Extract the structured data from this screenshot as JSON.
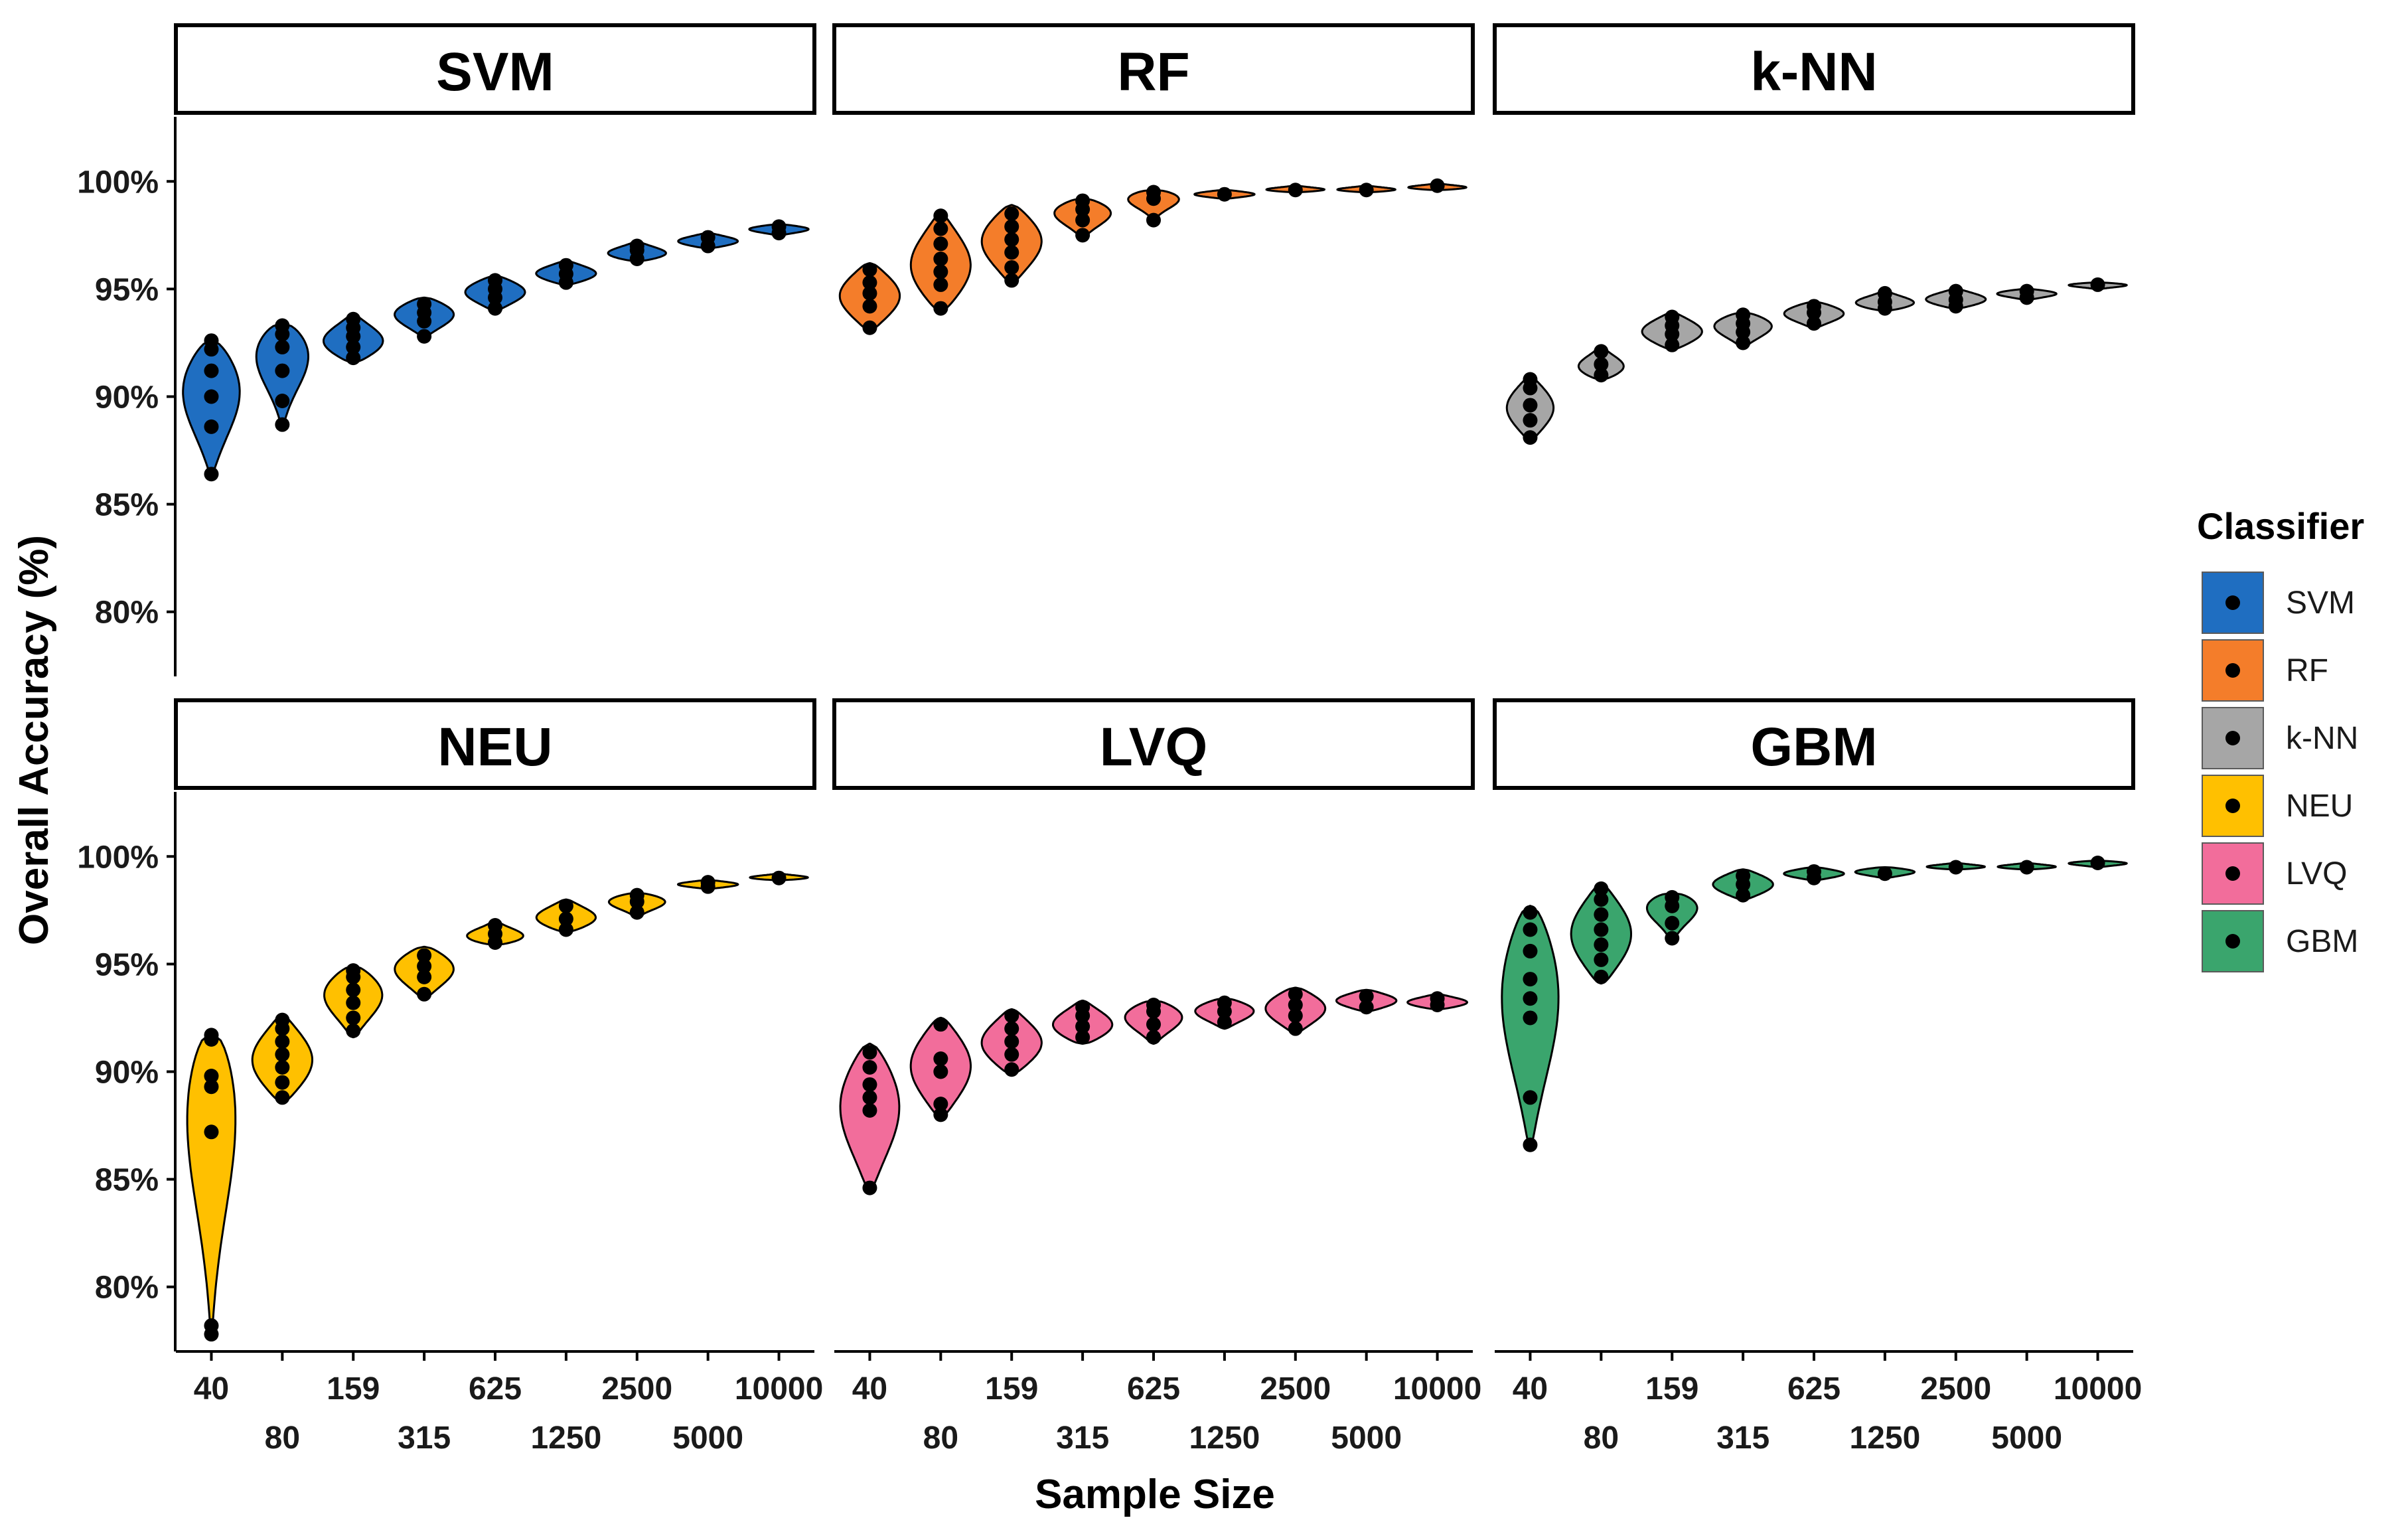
{
  "chart_data": {
    "type": "violin",
    "xlabel": "Sample Size",
    "ylabel": "Overall Accuracy (%)",
    "categories": [
      "40",
      "80",
      "159",
      "315",
      "625",
      "1250",
      "2500",
      "5000",
      "10000"
    ],
    "y_ticks": [
      "80%",
      "85%",
      "90%",
      "95%",
      "100%"
    ],
    "ylim": [
      77,
      103
    ],
    "legend": {
      "title": "Classifier",
      "items": [
        {
          "name": "SVM",
          "color": "#1f6ec1"
        },
        {
          "name": "RF",
          "color": "#f47d2a"
        },
        {
          "name": "k-NN",
          "color": "#a6a6a6"
        },
        {
          "name": "NEU",
          "color": "#ffc000"
        },
        {
          "name": "LVQ",
          "color": "#f26d9b"
        },
        {
          "name": "GBM",
          "color": "#3aa56d"
        }
      ]
    },
    "panels": [
      {
        "title": "SVM",
        "color": "#1f6ec1",
        "series": [
          {
            "n": "40",
            "min": 86.4,
            "max": 92.6,
            "peak": 90.8,
            "width": 0.9,
            "points": [
              86.4,
              88.6,
              90.0,
              91.2,
              92.2,
              92.6
            ]
          },
          {
            "n": "80",
            "min": 88.6,
            "max": 93.4,
            "peak": 92.6,
            "width": 0.9,
            "points": [
              88.7,
              89.8,
              91.2,
              92.3,
              92.9,
              93.3
            ]
          },
          {
            "n": "159",
            "min": 91.6,
            "max": 93.8,
            "peak": 92.5,
            "width": 0.9,
            "points": [
              91.8,
              92.3,
              92.8,
              93.2,
              93.6
            ]
          },
          {
            "n": "315",
            "min": 92.8,
            "max": 94.6,
            "peak": 93.9,
            "width": 0.9,
            "points": [
              92.8,
              93.5,
              93.9,
              94.3
            ]
          },
          {
            "n": "625",
            "min": 94.0,
            "max": 95.6,
            "peak": 94.9,
            "width": 0.9,
            "points": [
              94.1,
              94.6,
              95.0,
              95.4
            ]
          },
          {
            "n": "1250",
            "min": 95.2,
            "max": 96.3,
            "peak": 95.7,
            "width": 0.9,
            "points": [
              95.3,
              95.7,
              96.1
            ]
          },
          {
            "n": "2500",
            "min": 96.3,
            "max": 97.2,
            "peak": 96.6,
            "width": 0.9,
            "points": [
              96.4,
              96.8,
              97.0
            ]
          },
          {
            "n": "5000",
            "min": 96.9,
            "max": 97.6,
            "peak": 97.2,
            "width": 0.9,
            "points": [
              97.0,
              97.4
            ]
          },
          {
            "n": "10000",
            "min": 97.5,
            "max": 98.0,
            "peak": 97.8,
            "width": 0.9,
            "points": [
              97.6,
              97.9
            ]
          }
        ]
      },
      {
        "title": "RF",
        "color": "#f47d2a",
        "series": [
          {
            "n": "40",
            "min": 93.1,
            "max": 96.2,
            "peak": 94.7,
            "width": 0.9,
            "points": [
              93.2,
              94.2,
              94.8,
              95.3,
              95.9
            ]
          },
          {
            "n": "80",
            "min": 94.0,
            "max": 98.5,
            "peak": 96.0,
            "width": 0.9,
            "points": [
              94.1,
              95.2,
              95.8,
              96.4,
              97.1,
              97.8,
              98.4
            ]
          },
          {
            "n": "159",
            "min": 95.3,
            "max": 98.9,
            "peak": 97.3,
            "width": 0.9,
            "points": [
              95.4,
              96.0,
              96.7,
              97.3,
              97.9,
              98.5
            ]
          },
          {
            "n": "315",
            "min": 97.4,
            "max": 99.2,
            "peak": 98.7,
            "width": 0.9,
            "points": [
              97.5,
              98.2,
              98.7,
              99.1
            ]
          },
          {
            "n": "625",
            "min": 98.2,
            "max": 99.6,
            "peak": 99.4,
            "width": 0.9,
            "points": [
              98.2,
              99.2,
              99.5
            ]
          },
          {
            "n": "1250",
            "min": 99.2,
            "max": 99.6,
            "peak": 99.4,
            "width": 0.9,
            "points": [
              99.4
            ]
          },
          {
            "n": "2500",
            "min": 99.5,
            "max": 99.8,
            "peak": 99.6,
            "width": 0.9,
            "points": [
              99.6
            ]
          },
          {
            "n": "5000",
            "min": 99.5,
            "max": 99.8,
            "peak": 99.6,
            "width": 0.9,
            "points": [
              99.6
            ]
          },
          {
            "n": "10000",
            "min": 99.6,
            "max": 99.9,
            "peak": 99.7,
            "width": 0.9,
            "points": [
              99.8
            ]
          }
        ]
      },
      {
        "title": "k-NN",
        "color": "#a6a6a6",
        "series": [
          {
            "n": "40",
            "min": 88.0,
            "max": 90.9,
            "peak": 89.5,
            "width": 0.7,
            "points": [
              88.1,
              88.9,
              89.6,
              90.4,
              90.8
            ]
          },
          {
            "n": "80",
            "min": 90.8,
            "max": 92.3,
            "peak": 91.3,
            "width": 0.7,
            "points": [
              91.0,
              91.5,
              92.1
            ]
          },
          {
            "n": "159",
            "min": 92.2,
            "max": 93.9,
            "peak": 93.0,
            "width": 0.9,
            "points": [
              92.4,
              92.9,
              93.3,
              93.7
            ]
          },
          {
            "n": "315",
            "min": 92.3,
            "max": 93.9,
            "peak": 93.4,
            "width": 0.9,
            "points": [
              92.5,
              93.0,
              93.4,
              93.8
            ]
          },
          {
            "n": "625",
            "min": 93.2,
            "max": 94.4,
            "peak": 93.9,
            "width": 0.9,
            "points": [
              93.4,
              93.9,
              94.2
            ]
          },
          {
            "n": "1250",
            "min": 94.0,
            "max": 94.9,
            "peak": 94.3,
            "width": 0.9,
            "points": [
              94.1,
              94.4,
              94.8
            ]
          },
          {
            "n": "2500",
            "min": 94.1,
            "max": 95.0,
            "peak": 94.5,
            "width": 0.9,
            "points": [
              94.2,
              94.5,
              94.9
            ]
          },
          {
            "n": "5000",
            "min": 94.5,
            "max": 95.0,
            "peak": 94.8,
            "width": 0.9,
            "points": [
              94.6,
              94.9
            ]
          },
          {
            "n": "10000",
            "min": 95.0,
            "max": 95.3,
            "peak": 95.2,
            "width": 0.9,
            "points": [
              95.2
            ]
          }
        ]
      },
      {
        "title": "NEU",
        "color": "#ffc000",
        "series": [
          {
            "n": "40",
            "min": 77.7,
            "max": 91.8,
            "peak": 90.5,
            "width": 0.9,
            "points": [
              77.8,
              78.2,
              87.2,
              89.3,
              89.8,
              91.5,
              91.7
            ]
          },
          {
            "n": "80",
            "min": 88.6,
            "max": 92.6,
            "peak": 90.5,
            "width": 0.9,
            "points": [
              88.8,
              89.5,
              90.2,
              90.8,
              91.4,
              92.0,
              92.4
            ]
          },
          {
            "n": "159",
            "min": 91.6,
            "max": 94.9,
            "peak": 93.8,
            "width": 0.9,
            "points": [
              91.9,
              92.5,
              93.2,
              93.8,
              94.4,
              94.7
            ]
          },
          {
            "n": "315",
            "min": 93.4,
            "max": 95.8,
            "peak": 94.9,
            "width": 0.9,
            "points": [
              93.6,
              94.4,
              94.9,
              95.4
            ]
          },
          {
            "n": "625",
            "min": 95.9,
            "max": 97.0,
            "peak": 96.2,
            "width": 0.9,
            "points": [
              96.0,
              96.4,
              96.8
            ]
          },
          {
            "n": "1250",
            "min": 96.5,
            "max": 98.0,
            "peak": 97.1,
            "width": 0.9,
            "points": [
              96.6,
              97.1,
              97.7
            ]
          },
          {
            "n": "2500",
            "min": 97.2,
            "max": 98.3,
            "peak": 98.0,
            "width": 0.9,
            "points": [
              97.4,
              97.9,
              98.2
            ]
          },
          {
            "n": "5000",
            "min": 98.5,
            "max": 98.9,
            "peak": 98.7,
            "width": 0.9,
            "points": [
              98.6,
              98.8
            ]
          },
          {
            "n": "10000",
            "min": 98.9,
            "max": 99.2,
            "peak": 99.0,
            "width": 0.9,
            "points": [
              99.0
            ]
          }
        ]
      },
      {
        "title": "LVQ",
        "color": "#f26d9b",
        "series": [
          {
            "n": "40",
            "min": 84.5,
            "max": 91.3,
            "peak": 88.7,
            "width": 0.9,
            "points": [
              84.6,
              88.2,
              88.8,
              89.4,
              90.2,
              90.9
            ]
          },
          {
            "n": "80",
            "min": 87.9,
            "max": 92.5,
            "peak": 90.3,
            "width": 0.9,
            "points": [
              88.0,
              88.5,
              90.0,
              90.6,
              92.2
            ]
          },
          {
            "n": "159",
            "min": 89.9,
            "max": 92.9,
            "peak": 91.3,
            "width": 0.9,
            "points": [
              90.1,
              90.8,
              91.4,
              92.0,
              92.6
            ]
          },
          {
            "n": "315",
            "min": 91.3,
            "max": 93.3,
            "peak": 92.1,
            "width": 0.9,
            "points": [
              91.6,
              92.1,
              92.6,
              93.0
            ]
          },
          {
            "n": "625",
            "min": 91.3,
            "max": 93.3,
            "peak": 92.7,
            "width": 0.9,
            "points": [
              91.6,
              92.2,
              92.8,
              93.1
            ]
          },
          {
            "n": "1250",
            "min": 92.0,
            "max": 93.4,
            "peak": 92.9,
            "width": 0.9,
            "points": [
              92.3,
              92.8,
              93.2
            ]
          },
          {
            "n": "2500",
            "min": 91.8,
            "max": 93.9,
            "peak": 93.0,
            "width": 0.9,
            "points": [
              92.0,
              92.6,
              93.1,
              93.6
            ]
          },
          {
            "n": "5000",
            "min": 92.8,
            "max": 93.8,
            "peak": 93.3,
            "width": 0.9,
            "points": [
              93.0,
              93.5
            ]
          },
          {
            "n": "10000",
            "min": 92.9,
            "max": 93.6,
            "peak": 93.2,
            "width": 0.9,
            "points": [
              93.1,
              93.4
            ]
          }
        ]
      },
      {
        "title": "GBM",
        "color": "#3aa56d",
        "series": [
          {
            "n": "40",
            "min": 86.5,
            "max": 97.7,
            "peak": 94.5,
            "width": 0.9,
            "points": [
              86.6,
              88.8,
              92.5,
              93.4,
              94.3,
              95.6,
              96.6,
              97.4
            ]
          },
          {
            "n": "80",
            "min": 94.1,
            "max": 98.7,
            "peak": 96.4,
            "width": 0.9,
            "points": [
              94.4,
              95.2,
              95.9,
              96.6,
              97.3,
              98.0,
              98.5
            ]
          },
          {
            "n": "159",
            "min": 96.0,
            "max": 98.3,
            "peak": 98.0,
            "width": 0.9,
            "points": [
              96.2,
              96.9,
              97.7,
              98.1
            ]
          },
          {
            "n": "315",
            "min": 98.0,
            "max": 99.4,
            "peak": 98.7,
            "width": 0.9,
            "points": [
              98.2,
              98.7,
              99.1
            ]
          },
          {
            "n": "625",
            "min": 98.9,
            "max": 99.5,
            "peak": 99.2,
            "width": 0.9,
            "points": [
              99.0,
              99.3
            ]
          },
          {
            "n": "1250",
            "min": 99.0,
            "max": 99.5,
            "peak": 99.3,
            "width": 0.9,
            "points": [
              99.2
            ]
          },
          {
            "n": "2500",
            "min": 99.4,
            "max": 99.7,
            "peak": 99.5,
            "width": 0.9,
            "points": [
              99.5
            ]
          },
          {
            "n": "5000",
            "min": 99.4,
            "max": 99.7,
            "peak": 99.5,
            "width": 0.9,
            "points": [
              99.5
            ]
          },
          {
            "n": "10000",
            "min": 99.5,
            "max": 99.8,
            "peak": 99.7,
            "width": 0.9,
            "points": [
              99.7
            ]
          }
        ]
      }
    ]
  }
}
